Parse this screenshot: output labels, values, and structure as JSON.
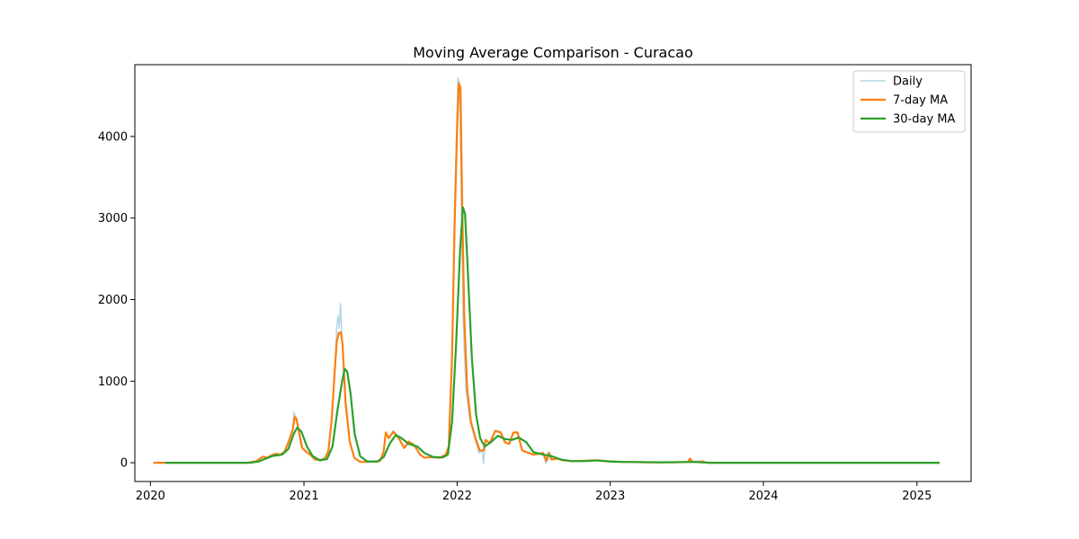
{
  "chart_data": {
    "type": "line",
    "title": "Moving Average Comparison - Curacao",
    "xlabel": "",
    "ylabel": "",
    "x_domain": [
      "2019-11-25",
      "2025-05-10"
    ],
    "ylim": [
      -230,
      4880
    ],
    "x_ticks": [
      {
        "date": "2020-01-01",
        "label": "2020"
      },
      {
        "date": "2021-01-01",
        "label": "2021"
      },
      {
        "date": "2022-01-01",
        "label": "2022"
      },
      {
        "date": "2023-01-01",
        "label": "2023"
      },
      {
        "date": "2024-01-01",
        "label": "2024"
      },
      {
        "date": "2025-01-01",
        "label": "2025"
      }
    ],
    "y_ticks": [
      0,
      1000,
      2000,
      3000,
      4000
    ],
    "legend_position": "top-right",
    "grid": false,
    "series": [
      {
        "name": "Daily",
        "color": "#a6cee3",
        "points": [
          [
            "2020-01-08",
            0
          ],
          [
            "2020-08-20",
            0
          ],
          [
            "2020-09-10",
            20
          ],
          [
            "2020-09-25",
            70
          ],
          [
            "2020-10-05",
            50
          ],
          [
            "2020-10-15",
            90
          ],
          [
            "2020-10-25",
            110
          ],
          [
            "2020-11-05",
            100
          ],
          [
            "2020-11-15",
            130
          ],
          [
            "2020-11-25",
            250
          ],
          [
            "2020-12-05",
            400
          ],
          [
            "2020-12-08",
            620
          ],
          [
            "2020-12-12",
            560
          ],
          [
            "2020-12-18",
            420
          ],
          [
            "2020-12-25",
            200
          ],
          [
            "2021-01-05",
            130
          ],
          [
            "2021-01-15",
            100
          ],
          [
            "2021-01-25",
            40
          ],
          [
            "2021-02-10",
            40
          ],
          [
            "2021-02-20",
            60
          ],
          [
            "2021-02-28",
            150
          ],
          [
            "2021-03-08",
            550
          ],
          [
            "2021-03-15",
            1100
          ],
          [
            "2021-03-20",
            1650
          ],
          [
            "2021-03-23",
            1800
          ],
          [
            "2021-03-26",
            1650
          ],
          [
            "2021-03-29",
            1950
          ],
          [
            "2021-04-02",
            1500
          ],
          [
            "2021-04-10",
            700
          ],
          [
            "2021-04-20",
            250
          ],
          [
            "2021-05-01",
            60
          ],
          [
            "2021-05-15",
            10
          ],
          [
            "2021-06-01",
            10
          ],
          [
            "2021-07-01",
            20
          ],
          [
            "2021-07-10",
            150
          ],
          [
            "2021-07-15",
            380
          ],
          [
            "2021-07-22",
            300
          ],
          [
            "2021-08-02",
            390
          ],
          [
            "2021-08-15",
            300
          ],
          [
            "2021-08-28",
            180
          ],
          [
            "2021-09-08",
            260
          ],
          [
            "2021-09-20",
            220
          ],
          [
            "2021-10-05",
            100
          ],
          [
            "2021-10-15",
            60
          ],
          [
            "2021-11-01",
            70
          ],
          [
            "2021-11-20",
            60
          ],
          [
            "2021-12-05",
            100
          ],
          [
            "2021-12-12",
            200
          ],
          [
            "2021-12-20",
            1400
          ],
          [
            "2021-12-26",
            3200
          ],
          [
            "2021-12-31",
            4100
          ],
          [
            "2022-01-03",
            4720
          ],
          [
            "2022-01-07",
            4650
          ],
          [
            "2022-01-11",
            3200
          ],
          [
            "2022-01-15",
            1800
          ],
          [
            "2022-01-22",
            900
          ],
          [
            "2022-02-01",
            500
          ],
          [
            "2022-02-12",
            300
          ],
          [
            "2022-02-22",
            120
          ],
          [
            "2022-03-02",
            150
          ],
          [
            "2022-03-05",
            -5
          ],
          [
            "2022-03-10",
            280
          ],
          [
            "2022-03-20",
            240
          ],
          [
            "2022-04-02",
            400
          ],
          [
            "2022-04-15",
            380
          ],
          [
            "2022-04-25",
            260
          ],
          [
            "2022-05-05",
            230
          ],
          [
            "2022-05-15",
            370
          ],
          [
            "2022-05-25",
            380
          ],
          [
            "2022-06-05",
            150
          ],
          [
            "2022-06-20",
            130
          ],
          [
            "2022-07-02",
            100
          ],
          [
            "2022-07-15",
            110
          ],
          [
            "2022-07-25",
            120
          ],
          [
            "2022-07-31",
            -5
          ],
          [
            "2022-08-05",
            130
          ],
          [
            "2022-08-12",
            40
          ],
          [
            "2022-08-25",
            60
          ],
          [
            "2022-09-10",
            30
          ],
          [
            "2022-10-01",
            20
          ],
          [
            "2022-11-01",
            25
          ],
          [
            "2022-12-01",
            30
          ],
          [
            "2023-01-01",
            15
          ],
          [
            "2023-02-01",
            10
          ],
          [
            "2023-04-01",
            5
          ],
          [
            "2023-06-01",
            5
          ],
          [
            "2023-07-05",
            10
          ],
          [
            "2023-07-10",
            60
          ],
          [
            "2023-07-15",
            5
          ],
          [
            "2023-08-10",
            20
          ],
          [
            "2023-08-20",
            0
          ],
          [
            "2025-02-24",
            0
          ]
        ]
      },
      {
        "name": "7-day MA",
        "color": "#ff7f0e",
        "points": [
          [
            "2020-01-08",
            0
          ],
          [
            "2020-08-20",
            0
          ],
          [
            "2020-09-10",
            20
          ],
          [
            "2020-09-25",
            75
          ],
          [
            "2020-10-05",
            60
          ],
          [
            "2020-10-15",
            90
          ],
          [
            "2020-10-25",
            110
          ],
          [
            "2020-11-05",
            100
          ],
          [
            "2020-11-15",
            130
          ],
          [
            "2020-11-25",
            250
          ],
          [
            "2020-12-05",
            400
          ],
          [
            "2020-12-10",
            560
          ],
          [
            "2020-12-14",
            540
          ],
          [
            "2020-12-20",
            380
          ],
          [
            "2020-12-28",
            180
          ],
          [
            "2021-01-08",
            130
          ],
          [
            "2021-01-18",
            90
          ],
          [
            "2021-01-28",
            40
          ],
          [
            "2021-02-10",
            30
          ],
          [
            "2021-02-20",
            55
          ],
          [
            "2021-02-28",
            140
          ],
          [
            "2021-03-08",
            520
          ],
          [
            "2021-03-15",
            1100
          ],
          [
            "2021-03-20",
            1480
          ],
          [
            "2021-03-25",
            1590
          ],
          [
            "2021-03-30",
            1600
          ],
          [
            "2021-04-03",
            1450
          ],
          [
            "2021-04-10",
            750
          ],
          [
            "2021-04-20",
            260
          ],
          [
            "2021-05-01",
            60
          ],
          [
            "2021-05-15",
            10
          ],
          [
            "2021-06-01",
            10
          ],
          [
            "2021-07-01",
            20
          ],
          [
            "2021-07-10",
            140
          ],
          [
            "2021-07-15",
            370
          ],
          [
            "2021-07-22",
            300
          ],
          [
            "2021-08-02",
            380
          ],
          [
            "2021-08-15",
            300
          ],
          [
            "2021-08-28",
            180
          ],
          [
            "2021-09-08",
            260
          ],
          [
            "2021-09-20",
            220
          ],
          [
            "2021-10-05",
            100
          ],
          [
            "2021-10-15",
            60
          ],
          [
            "2021-11-01",
            70
          ],
          [
            "2021-11-20",
            60
          ],
          [
            "2021-12-05",
            100
          ],
          [
            "2021-12-12",
            200
          ],
          [
            "2021-12-20",
            1300
          ],
          [
            "2021-12-26",
            2900
          ],
          [
            "2022-01-01",
            4100
          ],
          [
            "2022-01-05",
            4650
          ],
          [
            "2022-01-09",
            4600
          ],
          [
            "2022-01-13",
            3200
          ],
          [
            "2022-01-18",
            1800
          ],
          [
            "2022-01-25",
            900
          ],
          [
            "2022-02-03",
            500
          ],
          [
            "2022-02-14",
            300
          ],
          [
            "2022-02-24",
            150
          ],
          [
            "2022-03-05",
            150
          ],
          [
            "2022-03-10",
            280
          ],
          [
            "2022-03-20",
            240
          ],
          [
            "2022-04-02",
            390
          ],
          [
            "2022-04-15",
            370
          ],
          [
            "2022-04-25",
            250
          ],
          [
            "2022-05-05",
            230
          ],
          [
            "2022-05-15",
            370
          ],
          [
            "2022-05-25",
            370
          ],
          [
            "2022-06-05",
            150
          ],
          [
            "2022-06-20",
            120
          ],
          [
            "2022-07-02",
            100
          ],
          [
            "2022-07-15",
            110
          ],
          [
            "2022-07-25",
            120
          ],
          [
            "2022-08-02",
            20
          ],
          [
            "2022-08-08",
            120
          ],
          [
            "2022-08-15",
            40
          ],
          [
            "2022-08-28",
            50
          ],
          [
            "2022-09-10",
            30
          ],
          [
            "2022-10-01",
            20
          ],
          [
            "2022-11-01",
            25
          ],
          [
            "2022-12-01",
            30
          ],
          [
            "2023-01-01",
            15
          ],
          [
            "2023-02-01",
            10
          ],
          [
            "2023-04-01",
            5
          ],
          [
            "2023-06-01",
            5
          ],
          [
            "2023-07-05",
            10
          ],
          [
            "2023-07-10",
            50
          ],
          [
            "2023-07-16",
            10
          ],
          [
            "2023-08-10",
            15
          ],
          [
            "2023-08-20",
            0
          ],
          [
            "2025-02-24",
            0
          ]
        ]
      },
      {
        "name": "30-day MA",
        "color": "#2ca02c",
        "points": [
          [
            "2020-02-05",
            0
          ],
          [
            "2020-08-25",
            0
          ],
          [
            "2020-09-15",
            15
          ],
          [
            "2020-10-01",
            50
          ],
          [
            "2020-10-20",
            85
          ],
          [
            "2020-11-10",
            100
          ],
          [
            "2020-11-25",
            170
          ],
          [
            "2020-12-08",
            360
          ],
          [
            "2020-12-16",
            430
          ],
          [
            "2020-12-26",
            380
          ],
          [
            "2021-01-08",
            200
          ],
          [
            "2021-01-22",
            80
          ],
          [
            "2021-02-08",
            30
          ],
          [
            "2021-02-25",
            45
          ],
          [
            "2021-03-10",
            200
          ],
          [
            "2021-03-22",
            650
          ],
          [
            "2021-04-02",
            1000
          ],
          [
            "2021-04-08",
            1150
          ],
          [
            "2021-04-14",
            1120
          ],
          [
            "2021-04-22",
            850
          ],
          [
            "2021-05-02",
            350
          ],
          [
            "2021-05-15",
            80
          ],
          [
            "2021-06-01",
            15
          ],
          [
            "2021-06-25",
            15
          ],
          [
            "2021-07-10",
            70
          ],
          [
            "2021-07-25",
            240
          ],
          [
            "2021-08-08",
            340
          ],
          [
            "2021-08-22",
            300
          ],
          [
            "2021-09-08",
            230
          ],
          [
            "2021-09-28",
            200
          ],
          [
            "2021-10-15",
            120
          ],
          [
            "2021-11-05",
            70
          ],
          [
            "2021-11-28",
            65
          ],
          [
            "2021-12-10",
            100
          ],
          [
            "2021-12-20",
            500
          ],
          [
            "2021-12-30",
            1500
          ],
          [
            "2022-01-08",
            2600
          ],
          [
            "2022-01-15",
            3130
          ],
          [
            "2022-01-20",
            3050
          ],
          [
            "2022-01-27",
            2300
          ],
          [
            "2022-02-05",
            1300
          ],
          [
            "2022-02-15",
            600
          ],
          [
            "2022-02-25",
            300
          ],
          [
            "2022-03-08",
            200
          ],
          [
            "2022-03-22",
            250
          ],
          [
            "2022-04-08",
            330
          ],
          [
            "2022-04-25",
            290
          ],
          [
            "2022-05-12",
            280
          ],
          [
            "2022-05-28",
            310
          ],
          [
            "2022-06-15",
            250
          ],
          [
            "2022-07-02",
            130
          ],
          [
            "2022-07-25",
            100
          ],
          [
            "2022-08-15",
            80
          ],
          [
            "2022-09-05",
            40
          ],
          [
            "2022-10-01",
            20
          ],
          [
            "2022-11-01",
            20
          ],
          [
            "2022-12-01",
            28
          ],
          [
            "2023-01-01",
            15
          ],
          [
            "2023-02-01",
            10
          ],
          [
            "2023-05-01",
            5
          ],
          [
            "2023-07-20",
            10
          ],
          [
            "2023-08-25",
            0
          ],
          [
            "2025-02-24",
            0
          ]
        ]
      }
    ]
  }
}
